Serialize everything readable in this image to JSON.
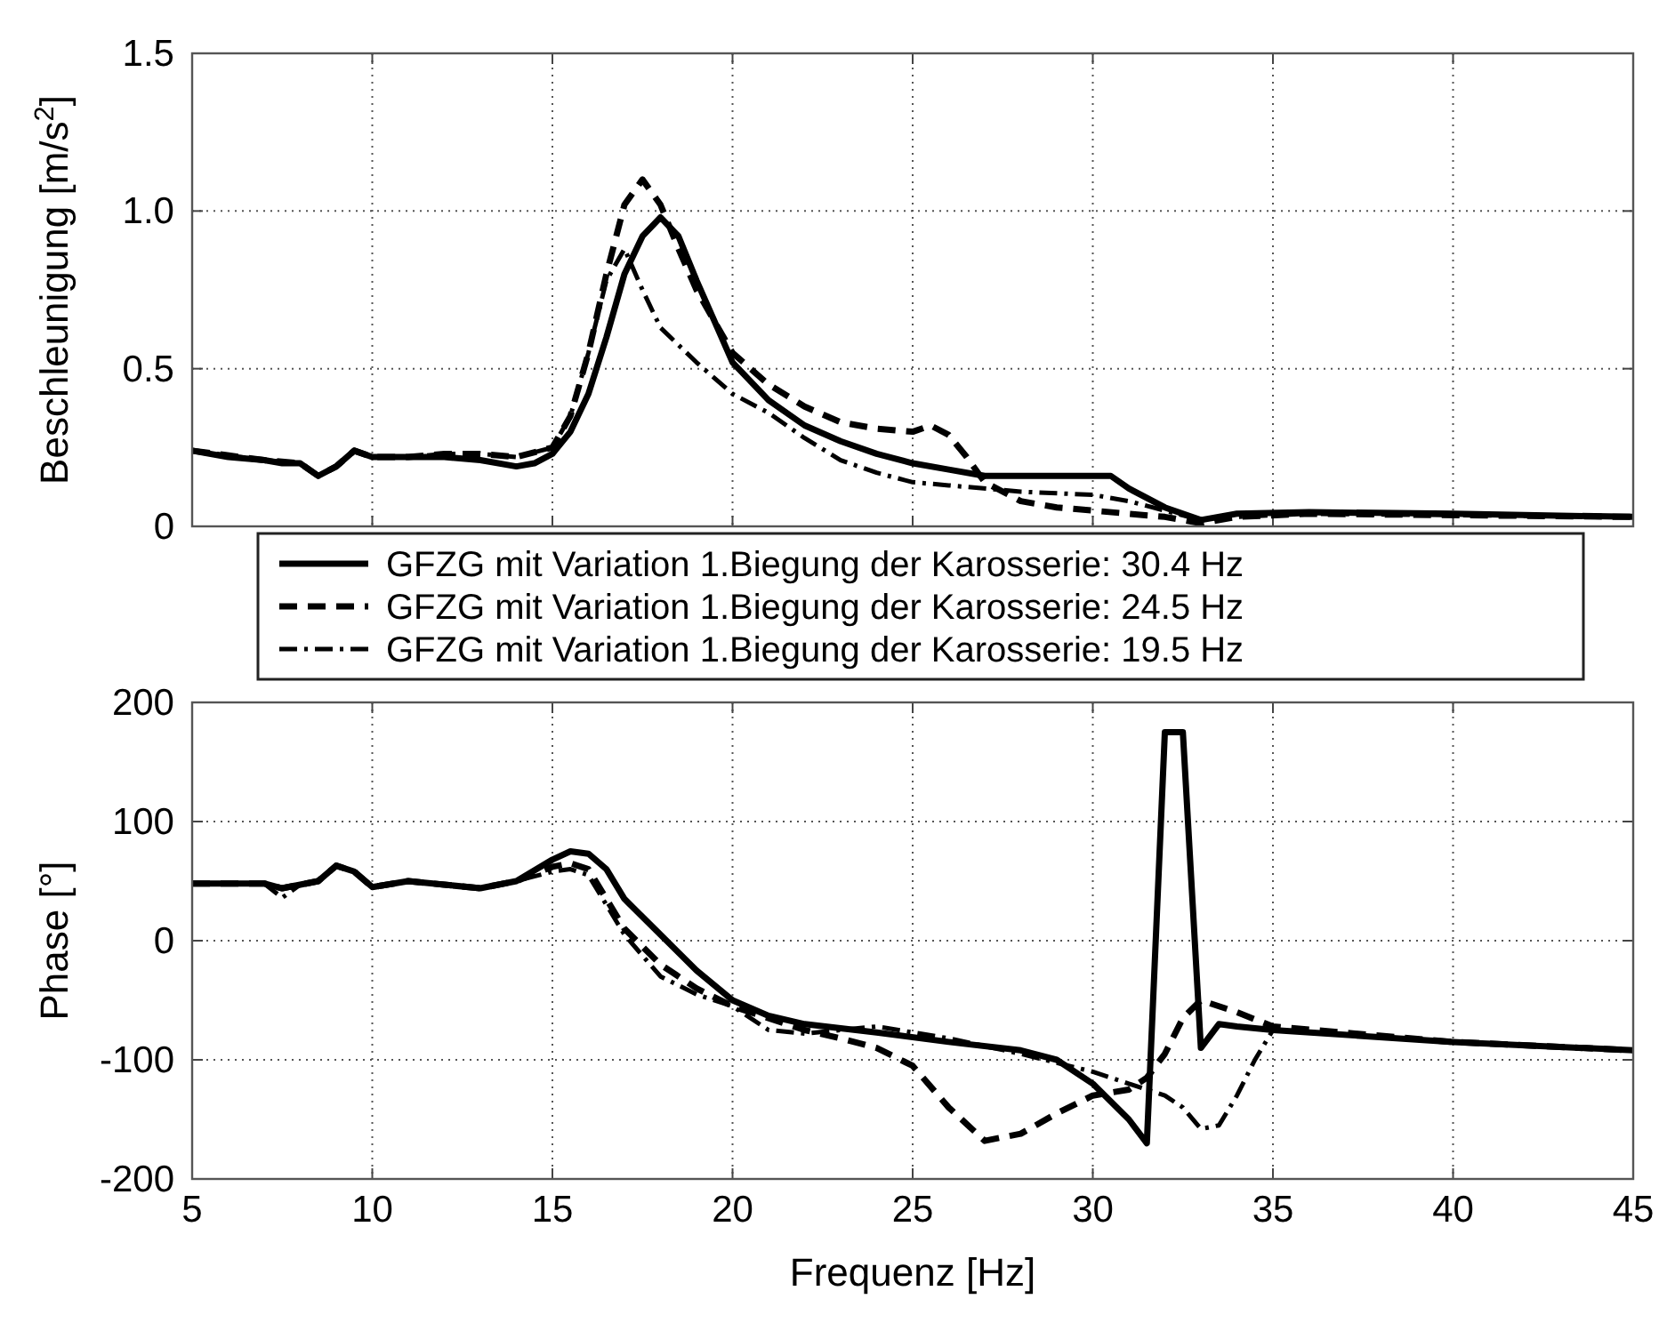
{
  "chart_data": [
    {
      "type": "line",
      "ylabel": "Beschleunigung [m/s$^{2}$]",
      "xlim": [
        5,
        45
      ],
      "xticks": [
        5,
        10,
        15,
        20,
        25,
        30,
        35,
        40,
        45
      ],
      "ylim": [
        0,
        1.5
      ],
      "yticks": [
        0,
        {
          "value": 0.5,
          "label": "0.5"
        },
        {
          "value": 1,
          "label": "1.0"
        },
        {
          "value": 1.5,
          "label": "1.5"
        }
      ],
      "grid": true,
      "tick_labels": "y",
      "legend": "bottom",
      "series": [
        {
          "name": "GFZG mit Variation 1.Biegung der Karosserie: 30.4 Hz",
          "color": "#000000",
          "line_style": "solid",
          "x": [
            5,
            6,
            7,
            7.5,
            8,
            8.5,
            9,
            9.5,
            10,
            11,
            12,
            13,
            14,
            14.5,
            15,
            15.5,
            16,
            16.5,
            17,
            17.5,
            18,
            18.5,
            19,
            19.5,
            20,
            21,
            22,
            23,
            24,
            25,
            26,
            27,
            28,
            29,
            30,
            30.5,
            31,
            32,
            33,
            34,
            36,
            40,
            45
          ],
          "values": [
            0.24,
            0.22,
            0.21,
            0.2,
            0.2,
            0.16,
            0.19,
            0.24,
            0.22,
            0.22,
            0.22,
            0.21,
            0.19,
            0.2,
            0.23,
            0.3,
            0.42,
            0.6,
            0.8,
            0.92,
            0.98,
            0.92,
            0.78,
            0.65,
            0.52,
            0.4,
            0.32,
            0.27,
            0.23,
            0.2,
            0.18,
            0.16,
            0.16,
            0.16,
            0.16,
            0.16,
            0.12,
            0.06,
            0.02,
            0.04,
            0.045,
            0.04,
            0.03
          ]
        },
        {
          "name": "GFZG mit Variation 1.Biegung der Karosserie: 24.5 Hz",
          "color": "#000000",
          "line_style": "dashed",
          "x": [
            5,
            7,
            8,
            8.5,
            9,
            9.5,
            10,
            11,
            12,
            13,
            14,
            15,
            15.5,
            16,
            16.5,
            17,
            17.5,
            18,
            18.5,
            19,
            20,
            21,
            22,
            23,
            24,
            25,
            25.5,
            26,
            26.5,
            27,
            28,
            29,
            30,
            31,
            32,
            33,
            34,
            36,
            45
          ],
          "values": [
            0.24,
            0.21,
            0.2,
            0.16,
            0.19,
            0.24,
            0.22,
            0.22,
            0.23,
            0.23,
            0.22,
            0.25,
            0.35,
            0.55,
            0.8,
            1.02,
            1.1,
            1.02,
            0.88,
            0.75,
            0.55,
            0.45,
            0.38,
            0.33,
            0.31,
            0.3,
            0.32,
            0.29,
            0.22,
            0.14,
            0.08,
            0.06,
            0.05,
            0.04,
            0.03,
            0.01,
            0.03,
            0.04,
            0.03
          ]
        },
        {
          "name": "GFZG mit Variation 1.Biegung der Karosserie: 19.5 Hz",
          "color": "#000000",
          "line_style": "dotted",
          "x": [
            5,
            7,
            8,
            8.5,
            9,
            9.5,
            10,
            11,
            12,
            13,
            14,
            15,
            15.5,
            16,
            16.5,
            17,
            17.5,
            18,
            19,
            20,
            21,
            22,
            23,
            24,
            25,
            26,
            28,
            30,
            31,
            32,
            33,
            34,
            36,
            45
          ],
          "values": [
            0.24,
            0.21,
            0.2,
            0.16,
            0.19,
            0.24,
            0.22,
            0.22,
            0.23,
            0.23,
            0.22,
            0.25,
            0.35,
            0.55,
            0.78,
            0.88,
            0.75,
            0.63,
            0.52,
            0.42,
            0.36,
            0.28,
            0.21,
            0.17,
            0.14,
            0.13,
            0.11,
            0.1,
            0.08,
            0.05,
            0.02,
            0.03,
            0.04,
            0.03
          ]
        }
      ]
    },
    {
      "type": "line",
      "xlabel": "Frequenz [Hz]",
      "ylabel": "Phase [°]",
      "xlim": [
        5,
        45
      ],
      "xticks": [
        5,
        10,
        15,
        20,
        25,
        30,
        35,
        40,
        45
      ],
      "ylim": [
        -200,
        200
      ],
      "yticks": [
        -200,
        -100,
        0,
        100,
        200
      ],
      "grid": true,
      "series": [
        {
          "color": "#000000",
          "line_style": "solid",
          "x": [
            5,
            7,
            7.5,
            8,
            8.5,
            9,
            9.5,
            10,
            11,
            12,
            13,
            14,
            15,
            15.5,
            16,
            16.5,
            17,
            18,
            19,
            20,
            21,
            22,
            24,
            26,
            28,
            29,
            30,
            31,
            31.5,
            32,
            32.5,
            33,
            33.5,
            34,
            35,
            40,
            45
          ],
          "values": [
            48,
            48,
            44,
            47,
            50,
            63,
            58,
            45,
            50,
            47,
            44,
            50,
            68,
            75,
            73,
            60,
            35,
            5,
            -25,
            -50,
            -63,
            -70,
            -77,
            -85,
            -92,
            -100,
            -120,
            -150,
            -170,
            175,
            175,
            -90,
            -70,
            -72,
            -75,
            -85,
            -92
          ]
        },
        {
          "color": "#000000",
          "line_style": "dashed",
          "x": [
            5,
            7,
            7.5,
            8,
            8.5,
            9,
            9.5,
            10,
            11,
            12,
            13,
            14,
            15,
            15.5,
            16,
            16.5,
            17,
            18,
            19,
            20,
            21,
            22,
            23,
            24,
            25,
            26,
            27,
            28,
            29,
            30,
            31,
            31.5,
            32,
            32.5,
            33,
            34,
            35,
            40,
            45
          ],
          "values": [
            48,
            48,
            44,
            47,
            50,
            63,
            58,
            45,
            50,
            47,
            44,
            50,
            62,
            65,
            60,
            35,
            10,
            -20,
            -40,
            -55,
            -65,
            -75,
            -82,
            -90,
            -105,
            -140,
            -168,
            -162,
            -145,
            -130,
            -125,
            -115,
            -95,
            -65,
            -50,
            -60,
            -72,
            -85,
            -92
          ]
        },
        {
          "color": "#000000",
          "line_style": "dotted",
          "x": [
            5,
            7,
            7.5,
            8,
            8.5,
            9,
            9.5,
            10,
            11,
            12,
            13,
            14,
            15,
            15.5,
            16,
            16.5,
            17,
            18,
            19,
            20,
            21,
            22,
            23,
            24,
            26,
            28,
            30,
            31,
            32,
            32.5,
            33,
            33.5,
            34,
            34.5,
            35,
            40,
            45
          ],
          "values": [
            48,
            48,
            36,
            47,
            50,
            63,
            58,
            45,
            50,
            47,
            44,
            50,
            58,
            60,
            55,
            30,
            5,
            -30,
            -45,
            -55,
            -75,
            -78,
            -75,
            -72,
            -82,
            -95,
            -110,
            -120,
            -130,
            -140,
            -158,
            -155,
            -130,
            -100,
            -75,
            -85,
            -92
          ]
        }
      ]
    }
  ]
}
